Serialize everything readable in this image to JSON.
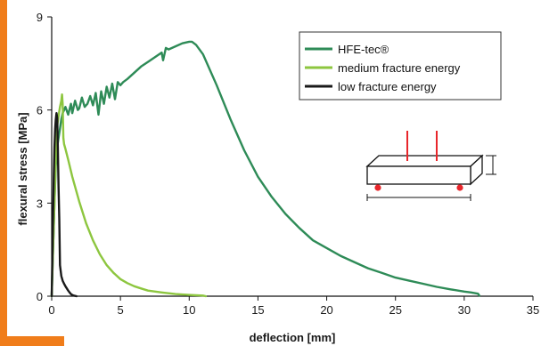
{
  "chart_data": {
    "type": "line",
    "title": "",
    "xlabel": "deflection [mm]",
    "ylabel": "flexural stress [MPa]",
    "xlim": [
      0,
      35
    ],
    "ylim": [
      0,
      9
    ],
    "x_ticks": [
      "0",
      "5",
      "10",
      "15",
      "20",
      "25",
      "30",
      "35"
    ],
    "y_ticks": [
      "0",
      "3",
      "6",
      "9"
    ],
    "grid": false,
    "legend_position": "top-right",
    "series": [
      {
        "name": "HFE-tec®",
        "color": "#2e8b57",
        "x": [
          0,
          0.1,
          0.2,
          0.3,
          0.4,
          0.5,
          0.6,
          0.7,
          0.8,
          0.9,
          1.0,
          1.2,
          1.4,
          1.5,
          1.7,
          1.9,
          2.0,
          2.2,
          2.4,
          2.6,
          2.8,
          3.0,
          3.2,
          3.4,
          3.6,
          3.8,
          4.0,
          4.2,
          4.4,
          4.6,
          4.8,
          5.0,
          5.2,
          5.5,
          6.0,
          6.5,
          7.0,
          7.5,
          8.0,
          8.1,
          8.3,
          8.5,
          9.0,
          9.5,
          10.0,
          10.2,
          10.5,
          11.0,
          12.0,
          13.0,
          14.0,
          15.0,
          16.0,
          17.0,
          18.0,
          19.0,
          20.0,
          21.0,
          22.0,
          23.0,
          24.0,
          25.0,
          26.0,
          27.0,
          28.0,
          29.0,
          30.0,
          30.5,
          31.0,
          31.1
        ],
        "y": [
          0,
          1.5,
          3.0,
          4.2,
          4.8,
          5.1,
          5.4,
          5.7,
          5.9,
          6.0,
          6.1,
          5.85,
          6.2,
          5.9,
          6.3,
          6.0,
          6.05,
          6.4,
          6.1,
          6.2,
          6.45,
          6.15,
          6.55,
          5.85,
          6.6,
          6.2,
          6.75,
          6.4,
          6.85,
          6.35,
          6.9,
          6.8,
          6.9,
          7.0,
          7.2,
          7.4,
          7.55,
          7.7,
          7.85,
          7.6,
          8.0,
          7.95,
          8.05,
          8.15,
          8.2,
          8.2,
          8.1,
          7.8,
          6.8,
          5.7,
          4.7,
          3.85,
          3.2,
          2.65,
          2.2,
          1.8,
          1.55,
          1.3,
          1.1,
          0.9,
          0.75,
          0.6,
          0.5,
          0.4,
          0.3,
          0.22,
          0.15,
          0.12,
          0.08,
          0.02
        ]
      },
      {
        "name": "medium fracture energy",
        "color": "#8dc63f",
        "x": [
          0,
          0.1,
          0.2,
          0.3,
          0.4,
          0.5,
          0.6,
          0.7,
          0.75,
          0.8,
          0.85,
          0.9,
          1.0,
          1.2,
          1.5,
          2.0,
          2.5,
          3.0,
          3.5,
          4.0,
          4.5,
          5.0,
          5.5,
          6.0,
          6.5,
          7.0,
          8.0,
          9.0,
          10.0,
          11.0,
          11.2
        ],
        "y": [
          0,
          1.5,
          3.0,
          4.5,
          5.5,
          5.8,
          6.1,
          6.3,
          6.5,
          6.2,
          5.1,
          4.9,
          4.75,
          4.4,
          3.85,
          3.05,
          2.35,
          1.8,
          1.35,
          1.0,
          0.75,
          0.55,
          0.42,
          0.32,
          0.25,
          0.18,
          0.12,
          0.07,
          0.04,
          0.02,
          0.0
        ]
      },
      {
        "name": "low fracture energy",
        "color": "#1a1a1a",
        "x": [
          0,
          0.05,
          0.1,
          0.15,
          0.2,
          0.25,
          0.3,
          0.35,
          0.4,
          0.45,
          0.5,
          0.55,
          0.6,
          0.7,
          0.8,
          0.9,
          1.0,
          1.1,
          1.2,
          1.3,
          1.4,
          1.5,
          1.6,
          1.8
        ],
        "y": [
          0,
          1.2,
          2.5,
          3.8,
          4.8,
          5.4,
          5.7,
          5.9,
          5.75,
          4.8,
          3.5,
          2.5,
          1.0,
          0.65,
          0.5,
          0.4,
          0.32,
          0.25,
          0.18,
          0.12,
          0.07,
          0.04,
          0.02,
          0.0
        ]
      }
    ]
  },
  "decor": {
    "accent_color": "#f07d1a",
    "load_marker_color": "#e8262b",
    "support_marker_color": "#e8262b"
  }
}
